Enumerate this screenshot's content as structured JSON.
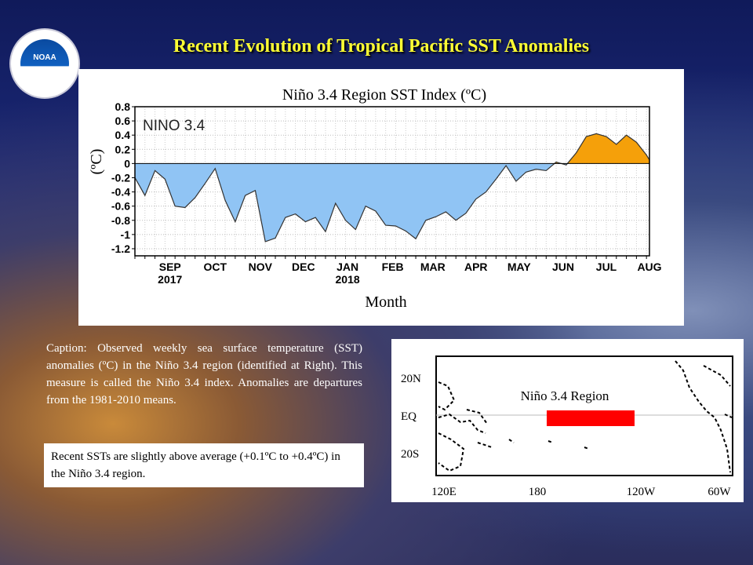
{
  "slide": {
    "title": "Recent Evolution of Tropical Pacific SST Anomalies",
    "logo_text": "NOAA",
    "caption": "Caption: Observed weekly sea surface temperature (SST) anomalies (ºC) in the Niño 3.4 region (identified at Right). This measure is called the Niño 3.4 index. Anomalies are departures from the 1981-2010 means.",
    "note": "Recent SSTs are slightly above average (+0.1ºC to +0.4ºC) in the Niño 3.4 region.",
    "colors": {
      "title": "#ffff33",
      "negative_fill": "#90c4f4",
      "positive_fill": "#f5a00a",
      "region_box": "#ff0000"
    }
  },
  "chart_data": [
    {
      "type": "area",
      "title": "Niño 3.4 Region SST Index (ºC)",
      "inner_label": "NINO 3.4",
      "xlabel": "Month",
      "ylabel": "(ºC)",
      "ylim": [
        -1.3,
        0.8
      ],
      "yticks": [
        0.8,
        0.6,
        0.4,
        0.2,
        0,
        -0.2,
        -0.4,
        -0.6,
        -0.8,
        -1,
        -1.2
      ],
      "ytick_labels": [
        "0.8",
        "0.6",
        "0.4",
        "0.2",
        "0",
        "-0.2",
        "-0.4",
        "-0.6",
        "-0.8",
        "-1",
        "-1.2"
      ],
      "xticks": [
        {
          "label": "SEP",
          "sub": "2017",
          "week": 3.5
        },
        {
          "label": "OCT",
          "sub": "",
          "week": 8
        },
        {
          "label": "NOV",
          "sub": "",
          "week": 12.5
        },
        {
          "label": "DEC",
          "sub": "",
          "week": 16.8
        },
        {
          "label": "JAN",
          "sub": "2018",
          "week": 21.2
        },
        {
          "label": "FEB",
          "sub": "",
          "week": 25.7
        },
        {
          "label": "MAR",
          "sub": "",
          "week": 29.7
        },
        {
          "label": "APR",
          "sub": "",
          "week": 34
        },
        {
          "label": "MAY",
          "sub": "",
          "week": 38.3
        },
        {
          "label": "JUN",
          "sub": "",
          "week": 42.7
        },
        {
          "label": "JUL",
          "sub": "",
          "week": 47
        },
        {
          "label": "AUG",
          "sub": "",
          "week": 51.3
        }
      ],
      "xlim": [
        0,
        51.3
      ],
      "grid": true,
      "series": [
        {
          "x": [
            0,
            1,
            2,
            3,
            4,
            5,
            6,
            7,
            8,
            9,
            10,
            11,
            12,
            13,
            14,
            15,
            16,
            17,
            18,
            19,
            20,
            21,
            22,
            23,
            24,
            25,
            26,
            27,
            28,
            29,
            30,
            31,
            32,
            33,
            34,
            35,
            36,
            37,
            38,
            39,
            40,
            41,
            42,
            43,
            44,
            45,
            46,
            47,
            48,
            49,
            50,
            51,
            51.3
          ],
          "values": [
            -0.2,
            -0.45,
            -0.1,
            -0.22,
            -0.6,
            -0.62,
            -0.48,
            -0.28,
            -0.07,
            -0.52,
            -0.82,
            -0.45,
            -0.38,
            -1.1,
            -1.05,
            -0.76,
            -0.71,
            -0.82,
            -0.76,
            -0.96,
            -0.56,
            -0.8,
            -0.93,
            -0.6,
            -0.67,
            -0.87,
            -0.88,
            -0.95,
            -1.06,
            -0.8,
            -0.75,
            -0.68,
            -0.8,
            -0.7,
            -0.5,
            -0.4,
            -0.22,
            -0.03,
            -0.25,
            -0.12,
            -0.08,
            -0.1,
            0.02,
            -0.02,
            0.15,
            0.38,
            0.42,
            0.38,
            0.27,
            0.4,
            0.3,
            0.12,
            0.05
          ]
        }
      ]
    },
    {
      "type": "map",
      "title": "Niño 3.4 Region",
      "lat_labels": [
        "20N",
        "EQ",
        "20S"
      ],
      "lon_labels": [
        "120E",
        "180",
        "120W",
        "60W"
      ],
      "region": {
        "lon": [
          190,
          240
        ],
        "lat": [
          -5,
          5
        ]
      }
    }
  ]
}
